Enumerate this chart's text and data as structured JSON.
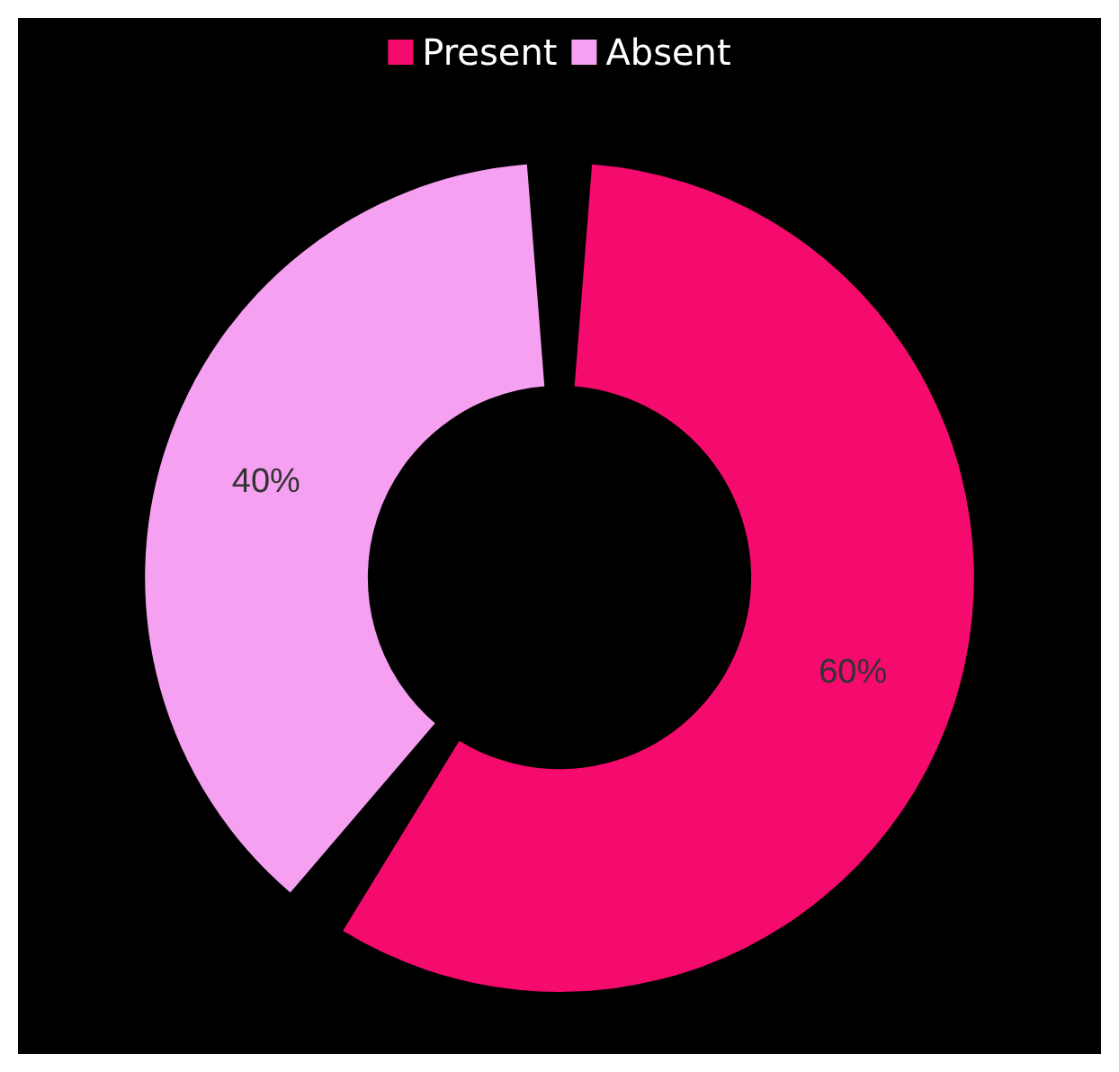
{
  "chart_data": {
    "type": "donut",
    "categories": [
      "Present",
      "Absent"
    ],
    "values": [
      60,
      40
    ],
    "colors": [
      "#f50a6e",
      "#f5a0f0"
    ],
    "value_labels": [
      "60%",
      "40%"
    ],
    "legend": "top"
  }
}
